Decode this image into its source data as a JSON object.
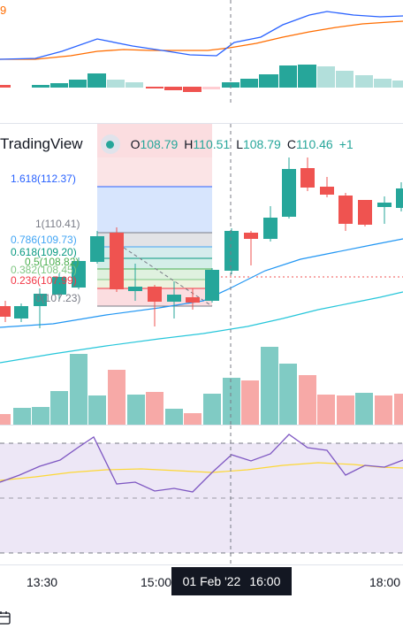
{
  "top_pane": {
    "indicator_value": "9",
    "line1_color": "#2962ff",
    "line2_color": "#ff6d00",
    "hist_up": "#26a69a",
    "hist_up_light": "#b2dfdb",
    "hist_down": "#ef5350",
    "hist_down_light": "#ffcdd2"
  },
  "legend": {
    "brand": "TradingView",
    "open_label": "O",
    "open": "108.79",
    "high_label": "H",
    "high": "110.51",
    "low_label": "L",
    "low": "108.79",
    "close_label": "C",
    "close": "110.46",
    "change": "+1"
  },
  "fibonacci": {
    "levels": [
      {
        "label": "1.618(112.37)",
        "color": "#2962ff"
      },
      {
        "label": "1(110.41)",
        "color": "#787b86"
      },
      {
        "label": "0.786(109.73)",
        "color": "#42a5f5"
      },
      {
        "label": "0.618(109.20)",
        "color": "#089981"
      },
      {
        "label": "0.5(108.82)",
        "color": "#4caf50"
      },
      {
        "label": "0.382(108.45)",
        "color": "#81c784"
      },
      {
        "label": "0.236(107.99)",
        "color": "#f23645"
      },
      {
        "label": "0(107.23)",
        "color": "#787b86"
      }
    ]
  },
  "colors": {
    "up": "#26a69a",
    "down": "#ef5350",
    "ma_line": "#2196f3",
    "ma_line_2": "#26c6da",
    "rsi_line": "#7e57c2",
    "rsi_ma": "#fdd835",
    "rsi_band": "#ede7f6"
  },
  "volume": {
    "up": "#80cbc4",
    "down": "#f7a9a7"
  },
  "time_axis": {
    "labels": [
      "13:30",
      "15:00",
      "18:00"
    ],
    "crosshair_date": "01 Feb '22",
    "crosshair_time": "16:00"
  },
  "icons": {
    "corner": "calendar-icon"
  }
}
